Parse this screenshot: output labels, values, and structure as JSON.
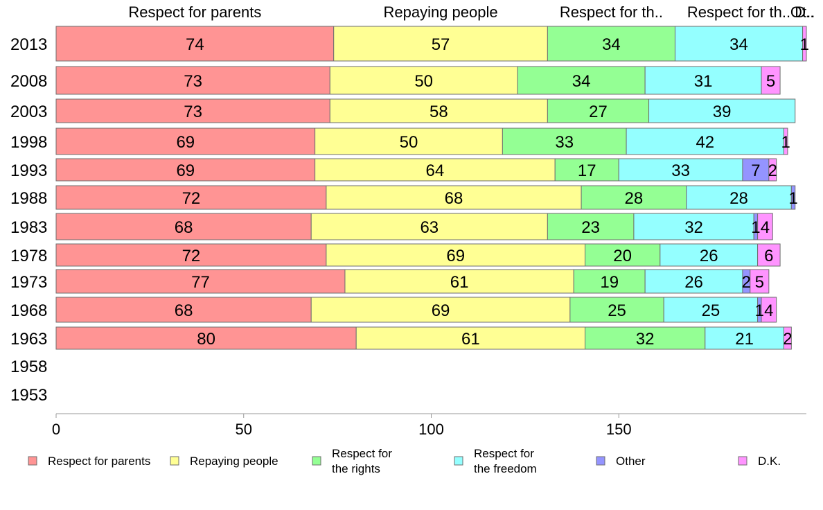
{
  "chart_data": {
    "type": "bar",
    "orientation": "horizontal",
    "stacked": true,
    "categories": [
      "2013",
      "2008",
      "2003",
      "1998",
      "1993",
      "1988",
      "1983",
      "1978",
      "1973",
      "1968",
      "1963",
      "1958",
      "1953"
    ],
    "series": [
      {
        "name": "Respect for parents",
        "legend_lines": [
          "Respect for parents"
        ],
        "top_label": "Respect for parents",
        "color": "#ff9494",
        "values": [
          74,
          73,
          73,
          69,
          69,
          72,
          68,
          72,
          77,
          68,
          80,
          null,
          null
        ]
      },
      {
        "name": "Repaying people",
        "legend_lines": [
          "Repaying people"
        ],
        "top_label": "Repaying people",
        "color": "#ffff94",
        "values": [
          57,
          50,
          58,
          50,
          64,
          68,
          63,
          69,
          61,
          69,
          61,
          null,
          null
        ]
      },
      {
        "name": "Respect for the rights",
        "legend_lines": [
          "Respect for",
          "the rights"
        ],
        "top_label": "Respect for th..",
        "color": "#94ff94",
        "values": [
          34,
          34,
          27,
          33,
          17,
          28,
          23,
          20,
          19,
          25,
          32,
          null,
          null
        ]
      },
      {
        "name": "Respect for the freedom",
        "legend_lines": [
          "Respect for",
          "the freedom"
        ],
        "top_label": "Respect for th..",
        "color": "#94ffff",
        "values": [
          34,
          31,
          39,
          42,
          33,
          28,
          32,
          26,
          26,
          25,
          21,
          null,
          null
        ]
      },
      {
        "name": "Other",
        "legend_lines": [
          "Other"
        ],
        "top_label": "Ot..",
        "color": "#9494ff",
        "values": [
          0,
          0,
          0,
          0,
          7,
          1,
          1,
          0,
          2,
          1,
          0,
          null,
          null
        ]
      },
      {
        "name": "D.K.",
        "legend_lines": [
          "D.K."
        ],
        "top_label": "D..",
        "color": "#ff94ff",
        "values": [
          1,
          5,
          0,
          1,
          2,
          0,
          4,
          6,
          5,
          4,
          2,
          null,
          null
        ]
      }
    ],
    "xlim": [
      0,
      200
    ],
    "xticks": [
      0,
      50,
      100,
      150
    ],
    "legend_position": "bottom",
    "grid": false
  }
}
